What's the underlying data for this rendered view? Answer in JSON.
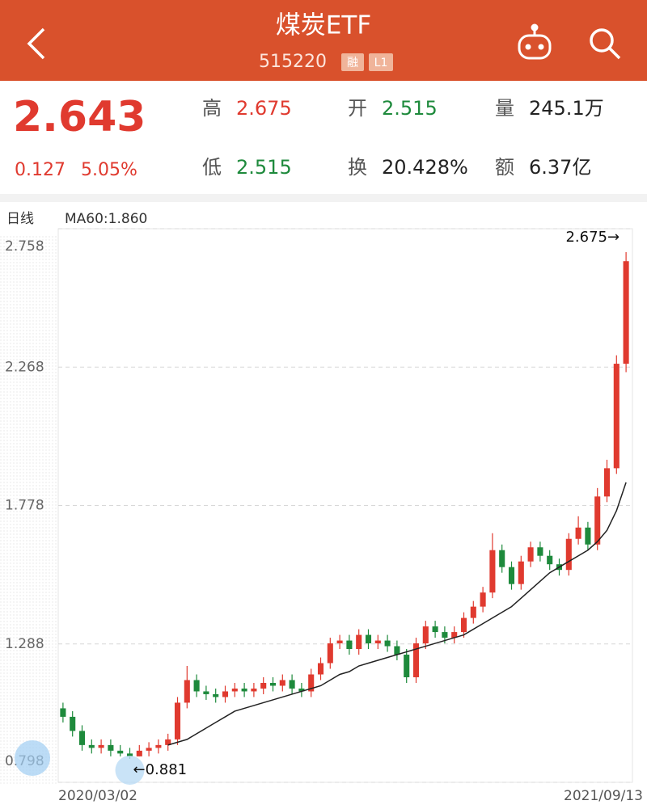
{
  "header": {
    "title": "煤炭ETF",
    "code": "515220",
    "badges": [
      "融",
      "L1"
    ]
  },
  "quote": {
    "price": "2.643",
    "change": "0.127",
    "change_pct": "5.05%",
    "stats": [
      {
        "label": "高",
        "value": "2.675",
        "color": "#e03a2f"
      },
      {
        "label": "开",
        "value": "2.515",
        "color": "#1e8a3c"
      },
      {
        "label": "量",
        "value": "245.1万",
        "color": "#222222"
      },
      {
        "label": "低",
        "value": "2.515",
        "color": "#1e8a3c"
      },
      {
        "label": "换",
        "value": "20.428%",
        "color": "#222222"
      },
      {
        "label": "额",
        "value": "6.37亿",
        "color": "#222222"
      }
    ]
  },
  "chart_data": {
    "type": "candlestick",
    "period_label": "日线",
    "ma_label": "MA60:1.860",
    "max_label": "2.675→",
    "min_label": "←0.881",
    "up_color": "#e03a2f",
    "down_color": "#1e8a3c",
    "ma_color": "#222222",
    "grid": true,
    "ylim": [
      0.798,
      2.758
    ],
    "yticks": [
      2.758,
      2.268,
      1.778,
      1.288,
      0.798
    ],
    "categories": [
      "2020/03/02",
      null,
      null,
      null,
      null,
      null,
      null,
      null,
      null,
      null,
      null,
      null,
      null,
      null,
      null,
      null,
      null,
      null,
      null,
      null,
      null,
      null,
      null,
      null,
      null,
      null,
      null,
      null,
      null,
      null,
      null,
      null,
      null,
      null,
      null,
      null,
      null,
      null,
      null,
      null,
      null,
      null,
      null,
      null,
      null,
      null,
      null,
      null,
      null,
      null,
      null,
      null,
      null,
      null,
      null,
      null,
      null,
      null,
      null,
      "2021/09/13"
    ],
    "open": [
      1.06,
      1.03,
      0.98,
      0.93,
      0.92,
      0.93,
      0.91,
      0.9,
      0.89,
      0.91,
      0.92,
      0.93,
      0.95,
      1.08,
      1.16,
      1.12,
      1.11,
      1.1,
      1.12,
      1.13,
      1.12,
      1.13,
      1.15,
      1.14,
      1.16,
      1.13,
      1.12,
      1.18,
      1.22,
      1.29,
      1.3,
      1.27,
      1.32,
      1.29,
      1.3,
      1.28,
      1.25,
      1.17,
      1.29,
      1.35,
      1.33,
      1.31,
      1.33,
      1.38,
      1.42,
      1.47,
      1.62,
      1.56,
      1.5,
      1.58,
      1.63,
      1.6,
      1.57,
      1.55,
      1.66,
      1.7,
      1.64,
      1.81,
      1.91,
      2.28
    ],
    "high": [
      1.08,
      1.05,
      1.0,
      0.95,
      0.95,
      0.95,
      0.93,
      0.92,
      0.93,
      0.94,
      0.95,
      0.97,
      1.1,
      1.21,
      1.18,
      1.14,
      1.13,
      1.14,
      1.15,
      1.15,
      1.15,
      1.17,
      1.17,
      1.18,
      1.18,
      1.15,
      1.2,
      1.24,
      1.31,
      1.32,
      1.32,
      1.34,
      1.34,
      1.32,
      1.32,
      1.3,
      1.27,
      1.31,
      1.37,
      1.37,
      1.35,
      1.35,
      1.4,
      1.44,
      1.49,
      1.68,
      1.64,
      1.58,
      1.6,
      1.65,
      1.65,
      1.62,
      1.59,
      1.68,
      1.74,
      1.72,
      1.84,
      1.94,
      2.31,
      2.675
    ],
    "low": [
      1.01,
      0.96,
      0.91,
      0.9,
      0.9,
      0.89,
      0.89,
      0.881,
      0.89,
      0.89,
      0.9,
      0.91,
      0.93,
      1.06,
      1.1,
      1.09,
      1.08,
      1.08,
      1.1,
      1.1,
      1.1,
      1.11,
      1.12,
      1.12,
      1.11,
      1.1,
      1.1,
      1.16,
      1.2,
      1.27,
      1.25,
      1.25,
      1.27,
      1.27,
      1.26,
      1.23,
      1.15,
      1.15,
      1.27,
      1.31,
      1.29,
      1.29,
      1.31,
      1.36,
      1.4,
      1.45,
      1.54,
      1.48,
      1.48,
      1.56,
      1.58,
      1.55,
      1.53,
      1.53,
      1.64,
      1.62,
      1.62,
      1.79,
      1.89,
      2.25
    ],
    "close": [
      1.03,
      0.98,
      0.93,
      0.92,
      0.93,
      0.91,
      0.9,
      0.89,
      0.91,
      0.92,
      0.93,
      0.95,
      1.08,
      1.16,
      1.12,
      1.11,
      1.1,
      1.12,
      1.13,
      1.12,
      1.13,
      1.15,
      1.14,
      1.16,
      1.13,
      1.12,
      1.18,
      1.22,
      1.29,
      1.3,
      1.27,
      1.32,
      1.29,
      1.3,
      1.28,
      1.25,
      1.17,
      1.29,
      1.35,
      1.33,
      1.31,
      1.33,
      1.38,
      1.42,
      1.47,
      1.62,
      1.56,
      1.5,
      1.58,
      1.63,
      1.6,
      1.57,
      1.55,
      1.66,
      1.7,
      1.64,
      1.81,
      1.91,
      2.28,
      2.643
    ],
    "ma60": [
      null,
      null,
      null,
      null,
      null,
      null,
      null,
      null,
      null,
      null,
      null,
      0.93,
      0.94,
      0.95,
      0.97,
      0.99,
      1.01,
      1.03,
      1.05,
      1.06,
      1.07,
      1.08,
      1.09,
      1.1,
      1.11,
      1.12,
      1.13,
      1.14,
      1.16,
      1.18,
      1.19,
      1.21,
      1.22,
      1.23,
      1.24,
      1.25,
      1.26,
      1.27,
      1.28,
      1.29,
      1.3,
      1.31,
      1.32,
      1.34,
      1.36,
      1.38,
      1.4,
      1.42,
      1.45,
      1.48,
      1.51,
      1.54,
      1.56,
      1.58,
      1.6,
      1.62,
      1.65,
      1.69,
      1.76,
      1.86
    ]
  }
}
